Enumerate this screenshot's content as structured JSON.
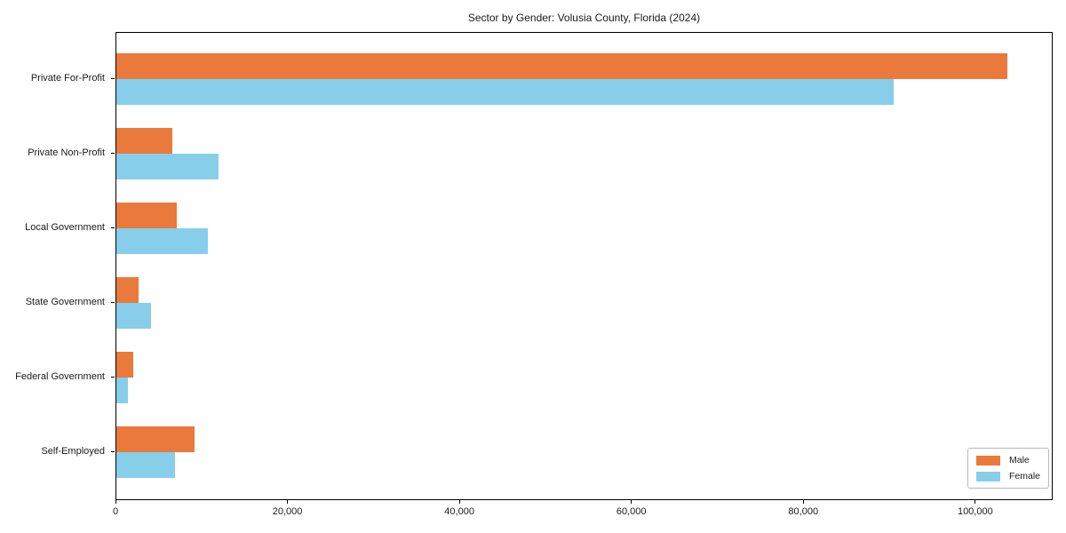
{
  "title": "Sector by Gender: Volusia County, Florida (2024)",
  "chart_data": {
    "type": "bar",
    "orientation": "horizontal",
    "title": "Sector by Gender: Volusia County, Florida (2024)",
    "xlabel": "",
    "ylabel": "",
    "categories": [
      "Private For-Profit",
      "Private Non-Profit",
      "Local Government",
      "State Government",
      "Federal Government",
      "Self-Employed"
    ],
    "series": [
      {
        "name": "Male",
        "color": "#e97a3c",
        "values": [
          103600,
          6500,
          7000,
          2550,
          2000,
          9050
        ]
      },
      {
        "name": "Female",
        "color": "#87ceeb",
        "values": [
          90400,
          11850,
          10650,
          4050,
          1300,
          6800
        ]
      }
    ],
    "xlim": [
      0,
      108800
    ],
    "x_ticks": [
      0,
      20000,
      40000,
      60000,
      80000,
      100000
    ],
    "x_tick_labels": [
      "0",
      "20,000",
      "40,000",
      "60,000",
      "80,000",
      "100,000"
    ],
    "grid": false,
    "legend": {
      "position": "lower right",
      "entries": [
        "Male",
        "Female"
      ]
    }
  }
}
